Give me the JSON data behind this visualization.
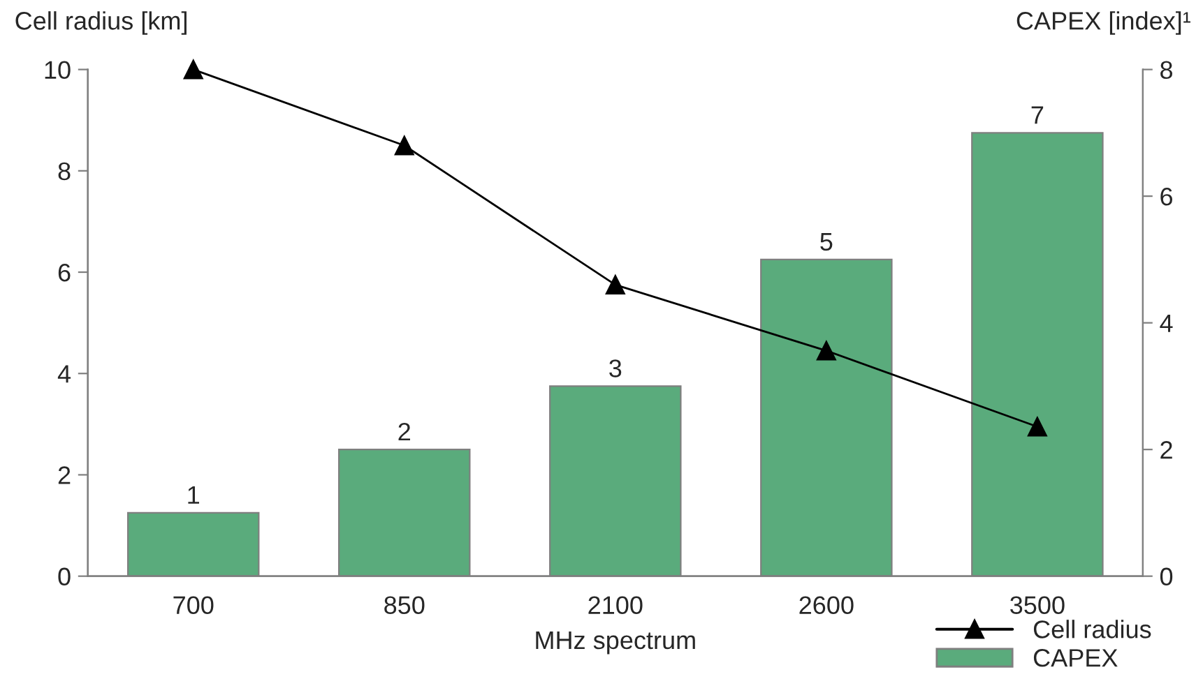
{
  "chart_data": {
    "type": "bar",
    "xlabel": "MHz spectrum",
    "ylabel": "Cell radius [km]",
    "y2label": "CAPEX [index]¹",
    "categories": [
      "700",
      "850",
      "2100",
      "2600",
      "3500"
    ],
    "series": [
      {
        "name": "Cell radius",
        "type": "line",
        "color": "#000000",
        "marker": "triangle",
        "values": [
          10,
          8.5,
          5.75,
          4.45,
          2.95
        ]
      },
      {
        "name": "CAPEX",
        "axis": "y2",
        "color": "#5aab7c",
        "values": [
          1,
          2,
          3,
          5,
          7
        ],
        "value_labels": [
          "1",
          "2",
          "3",
          "5",
          "7"
        ]
      }
    ],
    "ylim": [
      0,
      10
    ],
    "yticks": [
      0,
      2,
      4,
      6,
      8,
      10
    ],
    "y2lim": [
      0,
      8
    ],
    "y2ticks": [
      0,
      2,
      4,
      6,
      8
    ],
    "grid": false,
    "legend": "bottom right"
  }
}
